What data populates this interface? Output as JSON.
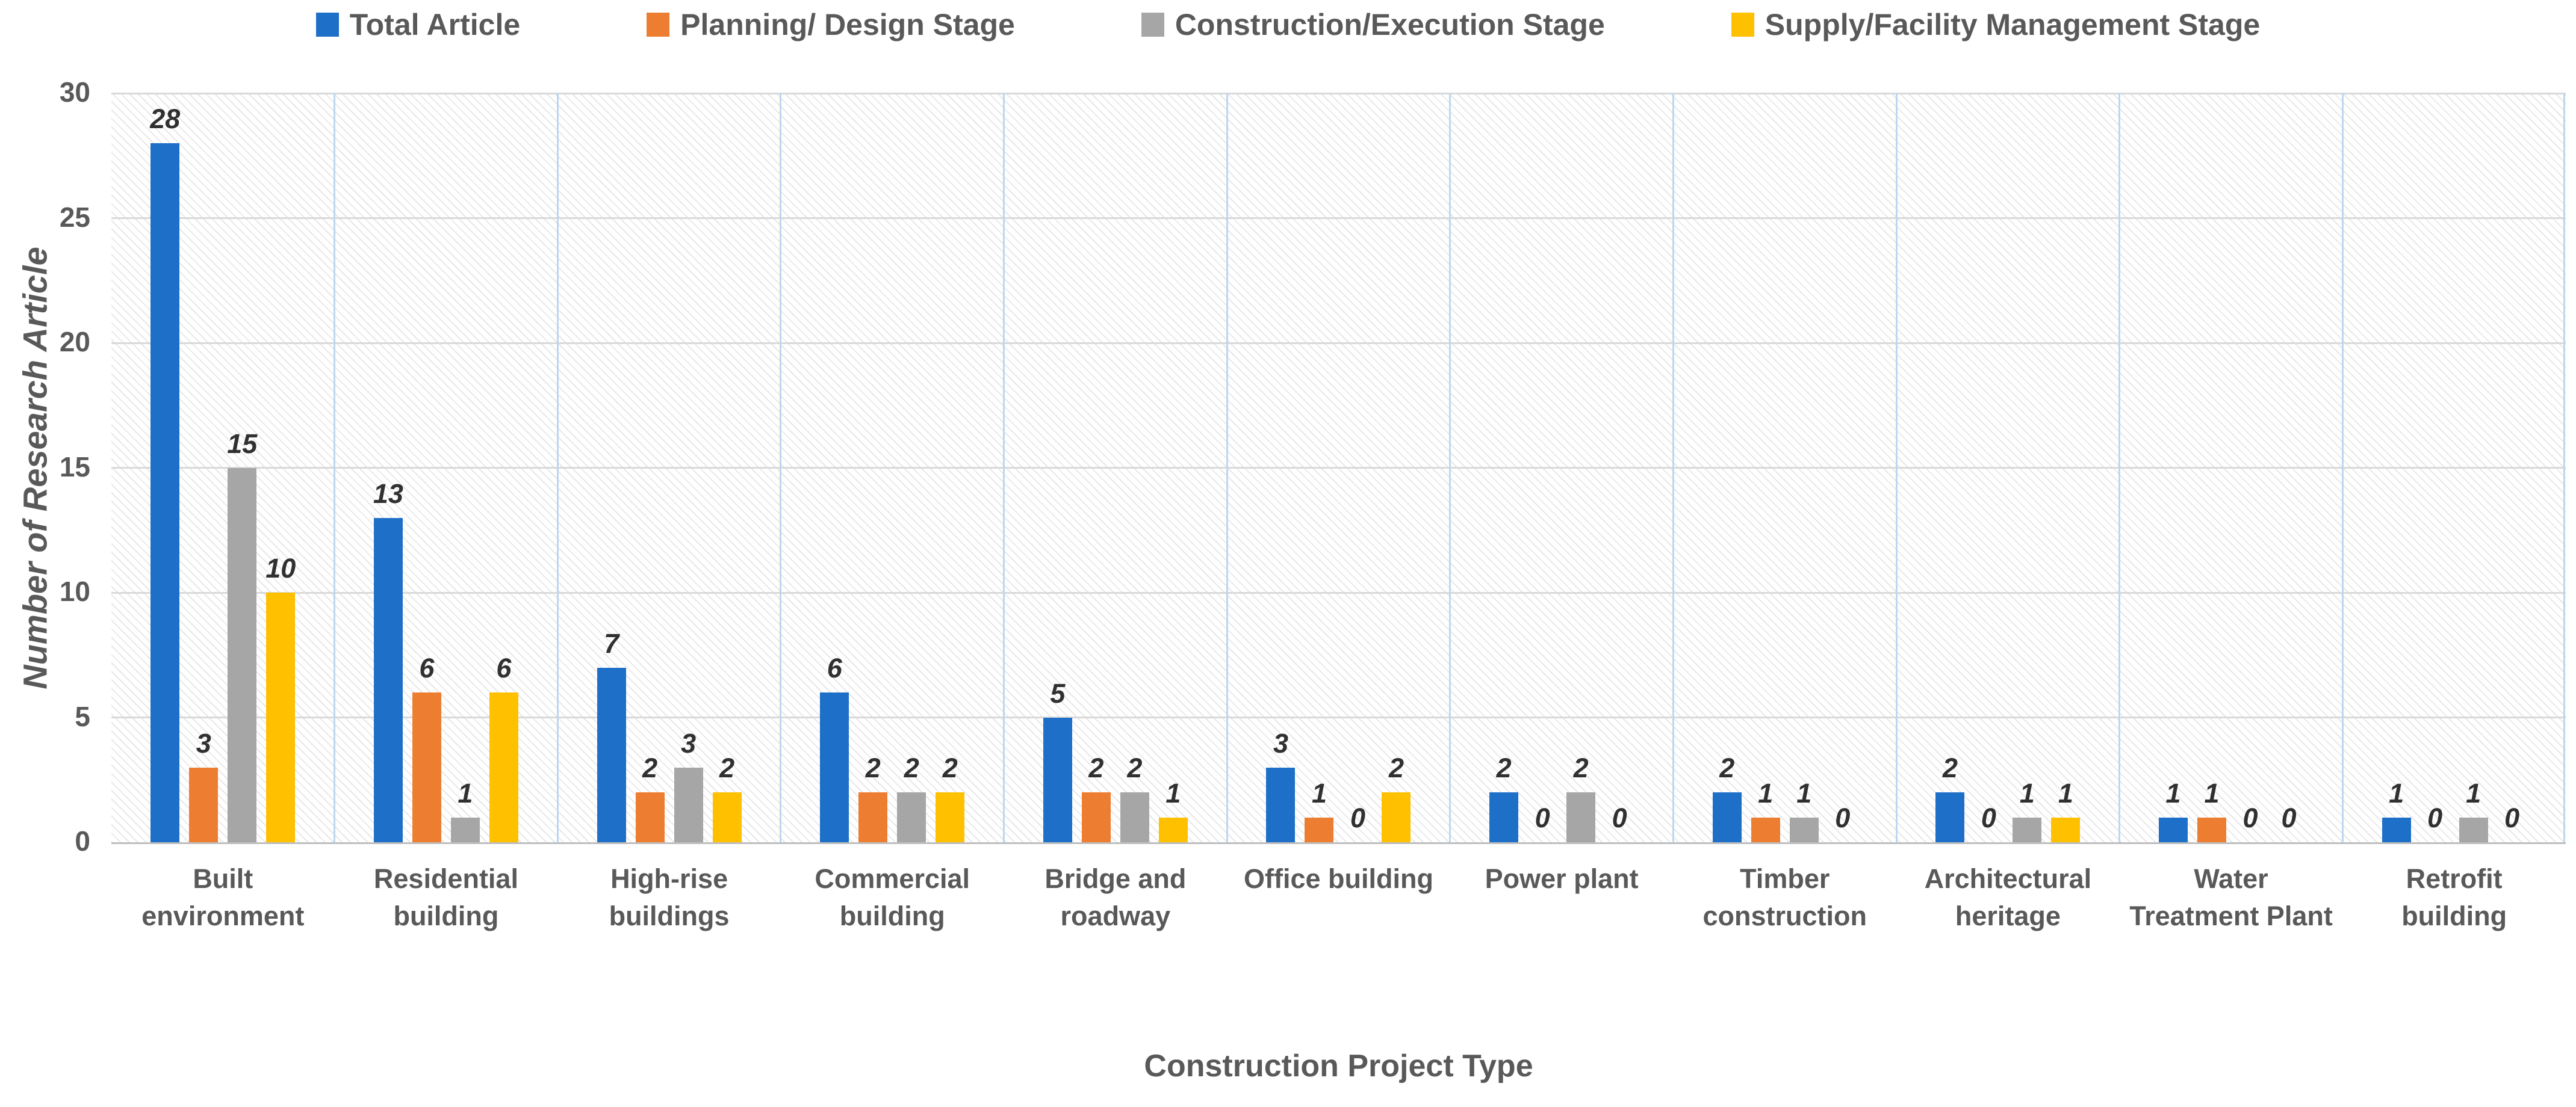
{
  "chart_data": {
    "type": "bar",
    "title": "",
    "xlabel": "Construction Project Type",
    "ylabel": "Number of Research Article",
    "ylim": [
      0,
      30
    ],
    "yticks": [
      0,
      5,
      10,
      15,
      20,
      25,
      30
    ],
    "grid": true,
    "legend_position": "top",
    "data_labels": true,
    "background_pattern": "diagonal-hatch",
    "categories": [
      "Built environment",
      "Residential building",
      "High-rise buildings",
      "Commercial building",
      "Bridge and roadway",
      "Office building",
      "Power plant",
      "Timber construction",
      "Architectural heritage",
      "Water Treatment Plant",
      "Retrofit building"
    ],
    "series": [
      {
        "name": "Total Article",
        "color": "#1E6FC8",
        "values": [
          28,
          13,
          7,
          6,
          5,
          3,
          2,
          2,
          2,
          1,
          1
        ]
      },
      {
        "name": "Planning/ Design Stage",
        "color": "#ED7D31",
        "values": [
          3,
          6,
          2,
          2,
          2,
          1,
          0,
          1,
          0,
          1,
          0
        ]
      },
      {
        "name": "Construction/Execution Stage",
        "color": "#A6A6A6",
        "values": [
          15,
          1,
          3,
          2,
          2,
          0,
          2,
          1,
          1,
          0,
          1
        ]
      },
      {
        "name": "Supply/Facility Management Stage",
        "color": "#FFC000",
        "values": [
          10,
          6,
          2,
          2,
          1,
          2,
          0,
          0,
          1,
          0,
          0
        ]
      }
    ],
    "colors": {
      "gridline": "#D9D9D9",
      "axis_line": "#BFBFBF",
      "category_separator": "#BDD7EE",
      "axis_text": "#595959",
      "data_label_text": "#303030"
    }
  }
}
